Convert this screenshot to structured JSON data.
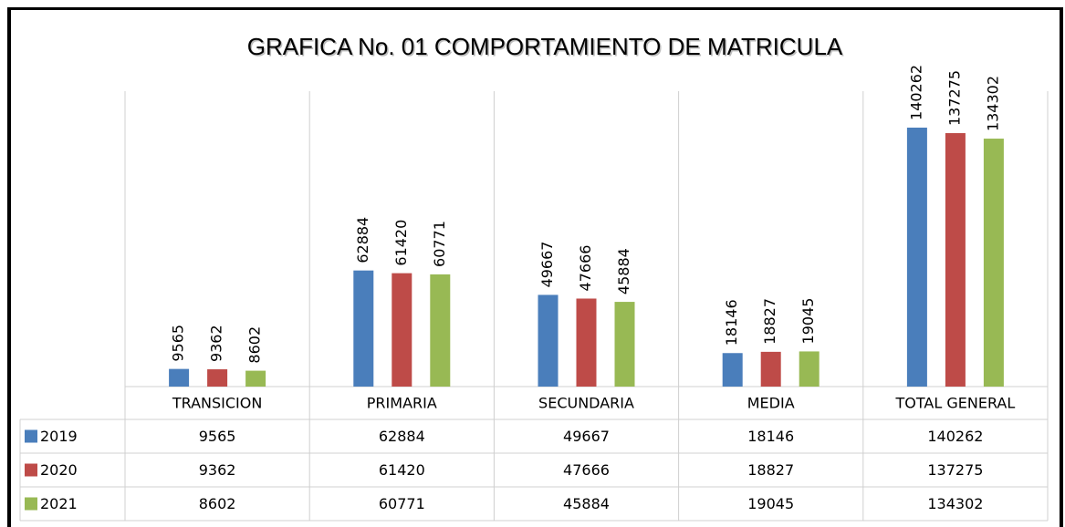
{
  "chart_data": {
    "type": "bar",
    "title": "GRAFICA  No. 01 COMPORTAMIENTO DE MATRICULA",
    "categories": [
      "TRANSICION",
      "PRIMARIA",
      "SECUNDARIA",
      "MEDIA",
      "TOTAL GENERAL"
    ],
    "series": [
      {
        "name": "2019",
        "color": "#4a7ebb",
        "values": [
          9565,
          62884,
          49667,
          18146,
          140262
        ]
      },
      {
        "name": "2020",
        "color": "#be4b48",
        "values": [
          9362,
          61420,
          47666,
          18827,
          137275
        ]
      },
      {
        "name": "2021",
        "color": "#98b954",
        "values": [
          8602,
          60771,
          45884,
          19045,
          134302
        ]
      }
    ],
    "ylim": [
      0,
      160000
    ]
  }
}
